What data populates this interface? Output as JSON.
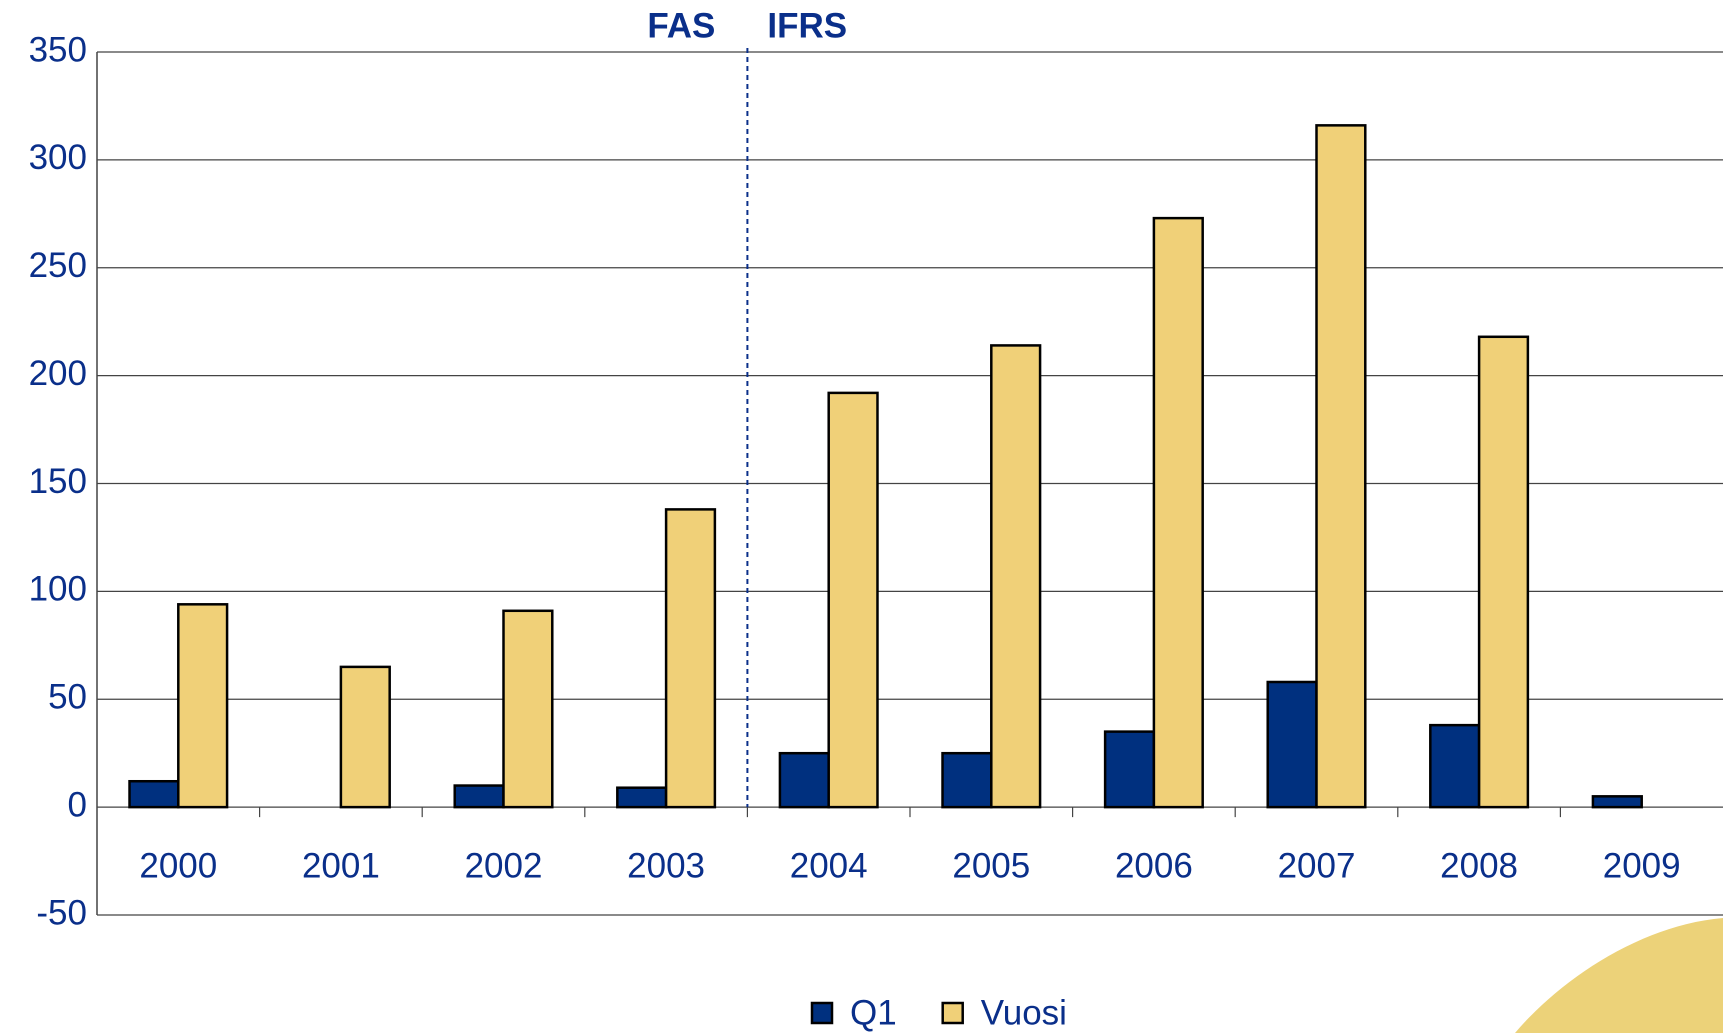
{
  "chart_data": {
    "type": "bar",
    "annotations": [
      "FAS",
      "IFRS"
    ],
    "categories": [
      "2000",
      "2001",
      "2002",
      "2003",
      "2004",
      "2005",
      "2006",
      "2007",
      "2008",
      "2009"
    ],
    "series": [
      {
        "name": "Q1",
        "color": "#00307f",
        "values": [
          12,
          null,
          10,
          9,
          25,
          25,
          35,
          58,
          38,
          5
        ]
      },
      {
        "name": "Vuosi",
        "color": "#f0d078",
        "values": [
          94,
          65,
          91,
          138,
          192,
          214,
          273,
          316,
          218,
          null
        ]
      }
    ],
    "ylim": [
      -50,
      350
    ],
    "yticks": [
      -50,
      0,
      50,
      100,
      150,
      200,
      250,
      300,
      350
    ],
    "grid": true,
    "legend": "bottom"
  }
}
